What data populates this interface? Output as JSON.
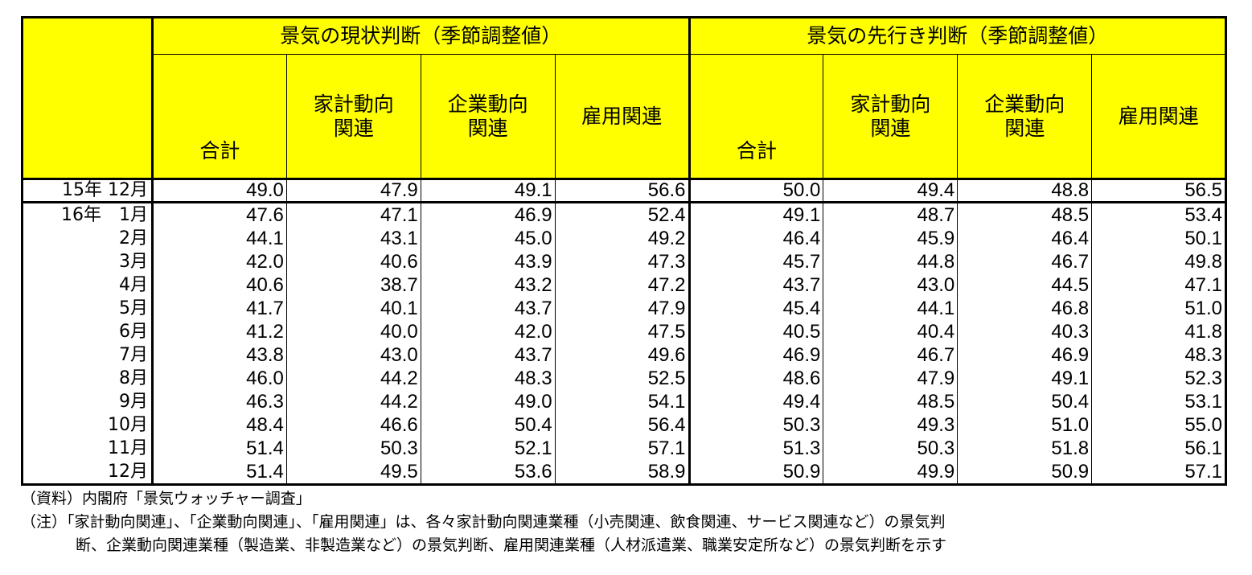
{
  "header": {
    "group_current": "景気の現状判断（季節調整値）",
    "group_future": "景気の先行き判断（季節調整値）",
    "sub_current": [
      "合計",
      "家計動向\n関連",
      "企業動向\n関連",
      "雇用関連"
    ],
    "sub_future": [
      "合計",
      "家計動向\n関連",
      "企業動向\n関連",
      "雇用関連"
    ]
  },
  "rows": [
    {
      "label": "15年 12月",
      "values": [
        "49.0",
        "47.9",
        "49.1",
        "56.6",
        "50.0",
        "49.4",
        "48.8",
        "56.5"
      ]
    },
    {
      "label": "16年　1月",
      "values": [
        "47.6",
        "47.1",
        "46.9",
        "52.4",
        "49.1",
        "48.7",
        "48.5",
        "53.4"
      ]
    },
    {
      "label": "2月",
      "values": [
        "44.1",
        "43.1",
        "45.0",
        "49.2",
        "46.4",
        "45.9",
        "46.4",
        "50.1"
      ]
    },
    {
      "label": "3月",
      "values": [
        "42.0",
        "40.6",
        "43.9",
        "47.3",
        "45.7",
        "44.8",
        "46.7",
        "49.8"
      ]
    },
    {
      "label": "4月",
      "values": [
        "40.6",
        "38.7",
        "43.2",
        "47.2",
        "43.7",
        "43.0",
        "44.5",
        "47.1"
      ]
    },
    {
      "label": "5月",
      "values": [
        "41.7",
        "40.1",
        "43.7",
        "47.9",
        "45.4",
        "44.1",
        "46.8",
        "51.0"
      ]
    },
    {
      "label": "6月",
      "values": [
        "41.2",
        "40.0",
        "42.0",
        "47.5",
        "40.5",
        "40.4",
        "40.3",
        "41.8"
      ]
    },
    {
      "label": "7月",
      "values": [
        "43.8",
        "43.0",
        "43.7",
        "49.6",
        "46.9",
        "46.7",
        "46.9",
        "48.3"
      ]
    },
    {
      "label": "8月",
      "values": [
        "46.0",
        "44.2",
        "48.3",
        "52.5",
        "48.6",
        "47.9",
        "49.1",
        "52.3"
      ]
    },
    {
      "label": "9月",
      "values": [
        "46.3",
        "44.2",
        "49.0",
        "54.1",
        "49.4",
        "48.5",
        "50.4",
        "53.1"
      ]
    },
    {
      "label": "10月",
      "values": [
        "48.4",
        "46.6",
        "50.4",
        "56.4",
        "50.3",
        "49.3",
        "51.0",
        "55.0"
      ]
    },
    {
      "label": "11月",
      "values": [
        "51.4",
        "50.3",
        "52.1",
        "57.1",
        "51.3",
        "50.3",
        "51.8",
        "56.1"
      ]
    },
    {
      "label": "12月",
      "values": [
        "51.4",
        "49.5",
        "53.6",
        "58.9",
        "50.9",
        "49.9",
        "50.9",
        "57.1"
      ]
    }
  ],
  "notes": {
    "source": "（資料）内閣府「景気ウォッチャー調査」",
    "note_line1": "（注）「家計動向関連」、「企業動向関連」、「雇用関連」は、各々家計動向関連業種（小売関連、飲食関連、サービス関連など）の景気判",
    "note_line2": "断、企業動向関連業種（製造業、非製造業など）の景気判断、雇用関連業種（人材派遣業、職業安定所など）の景気判断を示す"
  },
  "colors": {
    "header_bg": "#ffff00",
    "border": "#000000"
  }
}
